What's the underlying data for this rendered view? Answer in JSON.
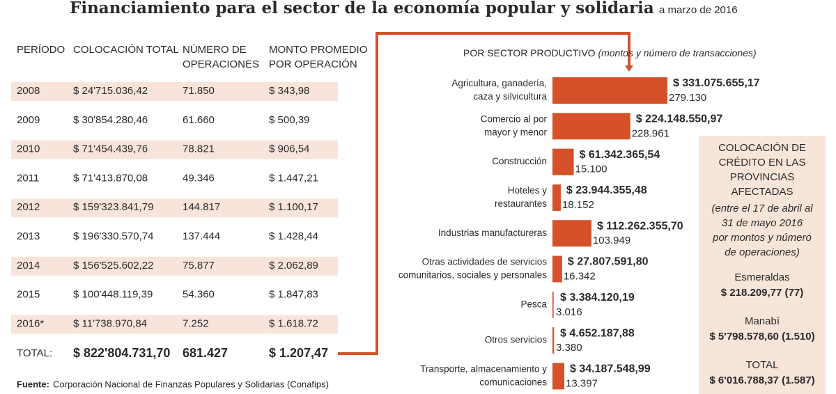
{
  "title": "Financiamiento para el sector de la economía popular y solidaria",
  "subtitle": "a marzo de 2016",
  "table": {
    "headers": [
      [
        "PERÍODO"
      ],
      [
        "COLOCACIÓN TOTAL"
      ],
      [
        "NÚMERO DE",
        "OPERACIONES"
      ],
      [
        "MONTO PROMEDIO",
        "POR OPERACIÓN"
      ]
    ],
    "rows": [
      [
        "2008",
        "$ 24'715.036,42",
        "71.850",
        "$ 343,98"
      ],
      [
        "2009",
        "$ 30'854.280,46",
        "61.660",
        "$ 500,39"
      ],
      [
        "2010",
        "$ 71'454.439,76",
        "78.821",
        "$ 906,54"
      ],
      [
        "2011",
        "$ 71'413.870,08",
        "49.346",
        "$ 1.447,21"
      ],
      [
        "2012",
        "$ 159'323.841,79",
        "144.817",
        "$ 1.100,17"
      ],
      [
        "2013",
        "$ 196'330.570,74",
        "137.444",
        "$ 1.428,44"
      ],
      [
        "2014",
        "$ 156'525.602,22",
        "75.877",
        "$ 2.062,89"
      ],
      [
        "2015",
        "$ 100'448.119,39",
        "54.360",
        "$ 1.847,83"
      ],
      [
        "2016*",
        "$ 11'738.970,84",
        "7.252",
        "$ 1.618.72"
      ]
    ],
    "total": [
      "TOTAL:",
      "$ 822'804.731,70",
      "681.427",
      "$ 1.207,47"
    ]
  },
  "source_label": "Fuente:",
  "source": "Corporación Nacional de Finanzas Populares y Solidarias (Conafips)",
  "chart_data": {
    "type": "bar",
    "orientation": "horizontal",
    "title": "POR SECTOR PRODUCTIVO",
    "subtitle": "(montos y número de transacciones)",
    "categories": [
      [
        "Agricultura, ganadería,",
        "caza y silvicultura"
      ],
      [
        "Comercio al por",
        "mayor y menor"
      ],
      [
        "Construcción"
      ],
      [
        "Hoteles y",
        "restaurantes"
      ],
      [
        "Industrias manufactureras"
      ],
      [
        "Otras actividades de servicios",
        "comunitarios, sociales y personales"
      ],
      [
        "Pesca"
      ],
      [
        "Otros servicios"
      ],
      [
        "Transporte, almacenamiento y",
        "comunicaciones"
      ]
    ],
    "series": [
      {
        "color": "#d4512a",
        "values": [
          331075655.17,
          224148550.97,
          61342365.54,
          23944355.48,
          112262355.7,
          27807591.8,
          3384120.19,
          4652187.88,
          34187548.99
        ],
        "value_labels": [
          "$ 331.075.655,17",
          "$ 224.148.550,97",
          "$ 61.342.365,54",
          "$ 23.944.355,48",
          "$ 112.262.355,70",
          "$ 27.807.591,80",
          "$ 3.384.120,19",
          "$ 4.652.187,88",
          "$ 34.187.548,99"
        ]
      },
      {
        "values": [
          279130,
          228961,
          15100,
          18152,
          103949,
          16342,
          3016,
          3380,
          13397
        ],
        "value_labels": [
          "279.130",
          "228.961",
          "15.100",
          "18.152",
          "103.949",
          "16.342",
          "3.016",
          "3.380",
          "13.397"
        ]
      }
    ]
  },
  "box": {
    "title_lines": [
      "COLOCACIÓN DE",
      "CRÉDITO EN LAS",
      "PROVINCIAS",
      "AFECTADAS"
    ],
    "note_lines": [
      "(entre el 17 de abril al",
      "31 de mayo 2016",
      "por montos y número",
      "de operaciones)"
    ],
    "items": [
      {
        "label": "Esmeraldas",
        "value": "$ 218.209,77 (77)"
      },
      {
        "label": "Manabí",
        "value": "$ 5'798.578,60 (1.510)"
      },
      {
        "label": "TOTAL",
        "value": "$ 6'016.788,37 (1.587)"
      }
    ]
  }
}
